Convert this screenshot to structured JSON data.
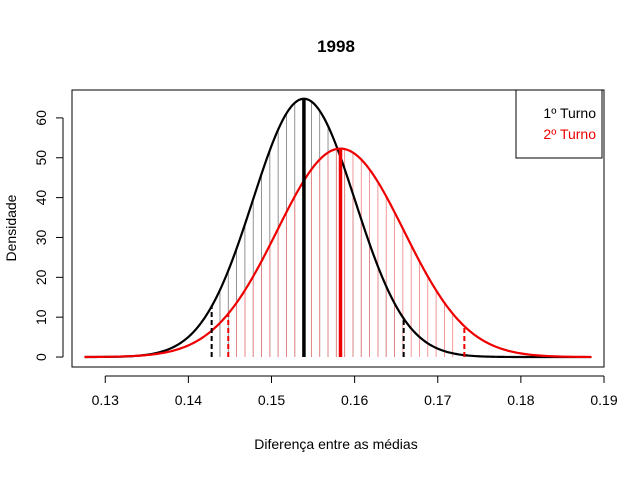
{
  "chart_data": {
    "type": "line",
    "title": "1998",
    "xlabel": "Diferença entre as médias",
    "ylabel": "Densidade",
    "xlim": [
      0.126,
      0.19
    ],
    "ylim": [
      -2.5,
      67
    ],
    "x_ticks": [
      0.13,
      0.14,
      0.15,
      0.16,
      0.17,
      0.18,
      0.19
    ],
    "x_tick_labels": [
      "0.13",
      "0.14",
      "0.15",
      "0.16",
      "0.17",
      "0.18",
      "0.19"
    ],
    "y_ticks": [
      0,
      10,
      20,
      30,
      40,
      50,
      60
    ],
    "y_tick_labels": [
      "0",
      "10",
      "20",
      "30",
      "40",
      "50",
      "60"
    ],
    "x_range": [
      0.1275,
      0.1885
    ],
    "grid": false,
    "legend_position": "top-right",
    "series": [
      {
        "name": "1º Turno",
        "color": "#000000",
        "distribution": "normal",
        "mean": 0.1539,
        "sd": 0.00615,
        "peak_density": 64.8,
        "ci": [
          0.1428,
          0.1659
        ],
        "hatch_step": 0.001
      },
      {
        "name": "2º Turno",
        "color": "#ee0000",
        "distribution": "normal",
        "mean": 0.1583,
        "sd": 0.00762,
        "peak_density": 52.3,
        "ci": [
          0.1448,
          0.1732
        ],
        "hatch_step": 0.001
      }
    ]
  }
}
